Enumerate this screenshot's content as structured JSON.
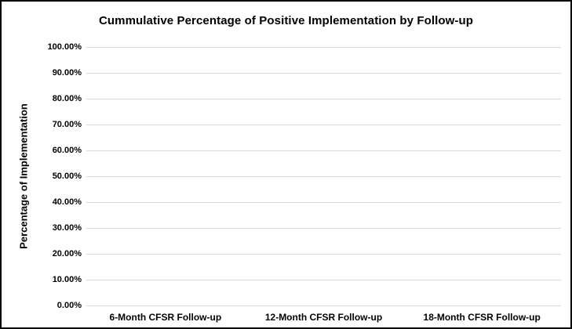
{
  "frame": {
    "background_color": "#ffffff",
    "border_color": "#000000"
  },
  "chart_data": {
    "type": "line",
    "title": "Cummulative Percentage of Positive Implementation by Follow-up",
    "xlabel": "",
    "ylabel": "Percentage of Implementation",
    "categories": [
      "6-Month CFSR Follow-up",
      "12-Month CFSR Follow-up",
      "18-Month CFSR Follow-up"
    ],
    "series": [],
    "ylim": [
      0,
      100
    ],
    "y_ticks": [
      {
        "value": 0,
        "label": "0.00%"
      },
      {
        "value": 10,
        "label": "10.00%"
      },
      {
        "value": 20,
        "label": "20.00%"
      },
      {
        "value": 30,
        "label": "30.00%"
      },
      {
        "value": 40,
        "label": "40.00%"
      },
      {
        "value": 50,
        "label": "50.00%"
      },
      {
        "value": 60,
        "label": "60.00%"
      },
      {
        "value": 70,
        "label": "70.00%"
      },
      {
        "value": 80,
        "label": "80.00%"
      },
      {
        "value": 90,
        "label": "90.00%"
      },
      {
        "value": 100,
        "label": "100.00%"
      }
    ],
    "grid": "horizontal",
    "gridline_color": "#d9d9d9",
    "text_color": "#000000",
    "legend": "none"
  }
}
